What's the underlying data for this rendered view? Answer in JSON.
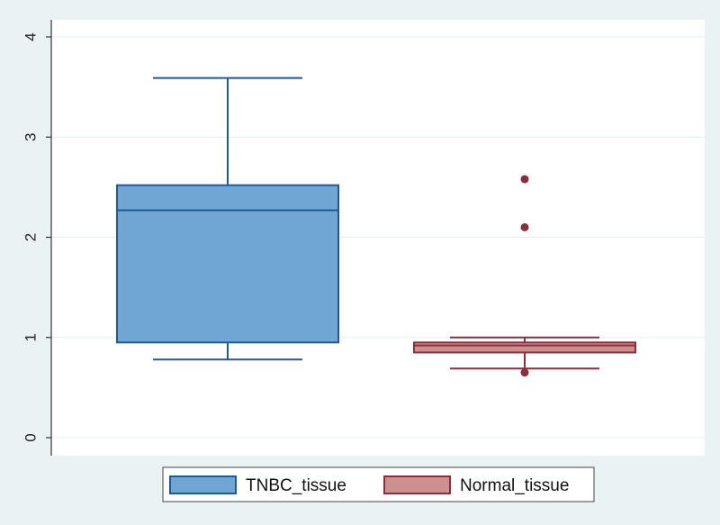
{
  "chart_data": {
    "type": "box",
    "title": "",
    "xlabel": "",
    "ylabel": "",
    "ylim": [
      0,
      4
    ],
    "yticks": [
      0,
      1,
      2,
      3,
      4
    ],
    "grid": "horizontal",
    "legend_position": "bottom",
    "series": [
      {
        "name": "TNBC_tissue",
        "color": "#6fa6d2",
        "stroke": "#1e5a9a",
        "whisker_low": 0.78,
        "q1": 0.95,
        "median": 2.27,
        "q3": 2.52,
        "whisker_high": 3.59,
        "outliers": []
      },
      {
        "name": "Normal_tissue",
        "color": "#cf8e90",
        "stroke": "#8c2f3d",
        "whisker_low": 0.69,
        "q1": 0.85,
        "median": 0.92,
        "q3": 0.95,
        "whisker_high": 1.0,
        "outliers": [
          0.65,
          2.1,
          2.58
        ]
      }
    ]
  }
}
